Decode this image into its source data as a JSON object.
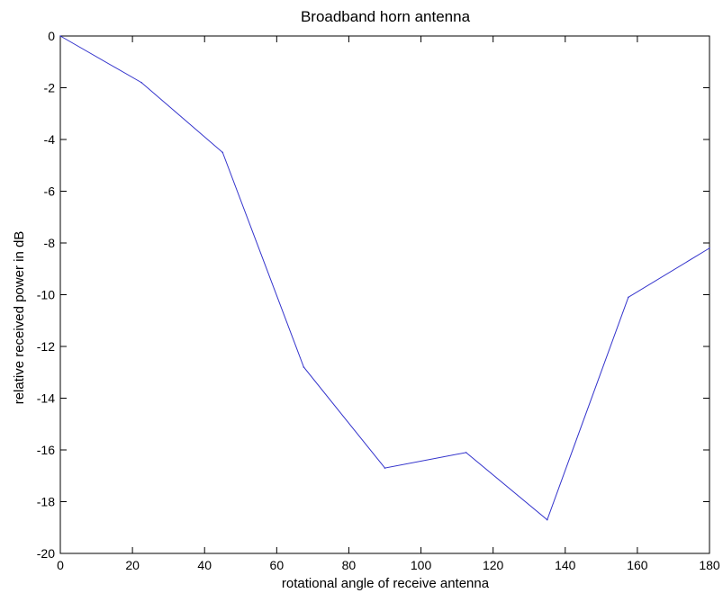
{
  "chart_data": {
    "type": "line",
    "title": "Broadband horn antenna",
    "xlabel": "rotational angle of receive antenna",
    "ylabel": "relative received power in dB",
    "xlim": [
      0,
      180
    ],
    "ylim": [
      -20,
      0
    ],
    "xticks": [
      0,
      20,
      40,
      60,
      80,
      100,
      120,
      140,
      160,
      180
    ],
    "yticks": [
      0,
      -2,
      -4,
      -6,
      -8,
      -10,
      -12,
      -14,
      -16,
      -18,
      -20
    ],
    "grid": false,
    "line_color": "#3333cc",
    "series": [
      {
        "x": [
          0,
          22.5,
          45,
          67.5,
          90,
          112.5,
          135,
          157.5,
          180
        ],
        "y": [
          0,
          -1.8,
          -4.5,
          -12.8,
          -16.7,
          -16.1,
          -18.7,
          -10.1,
          -8.2
        ]
      }
    ]
  }
}
